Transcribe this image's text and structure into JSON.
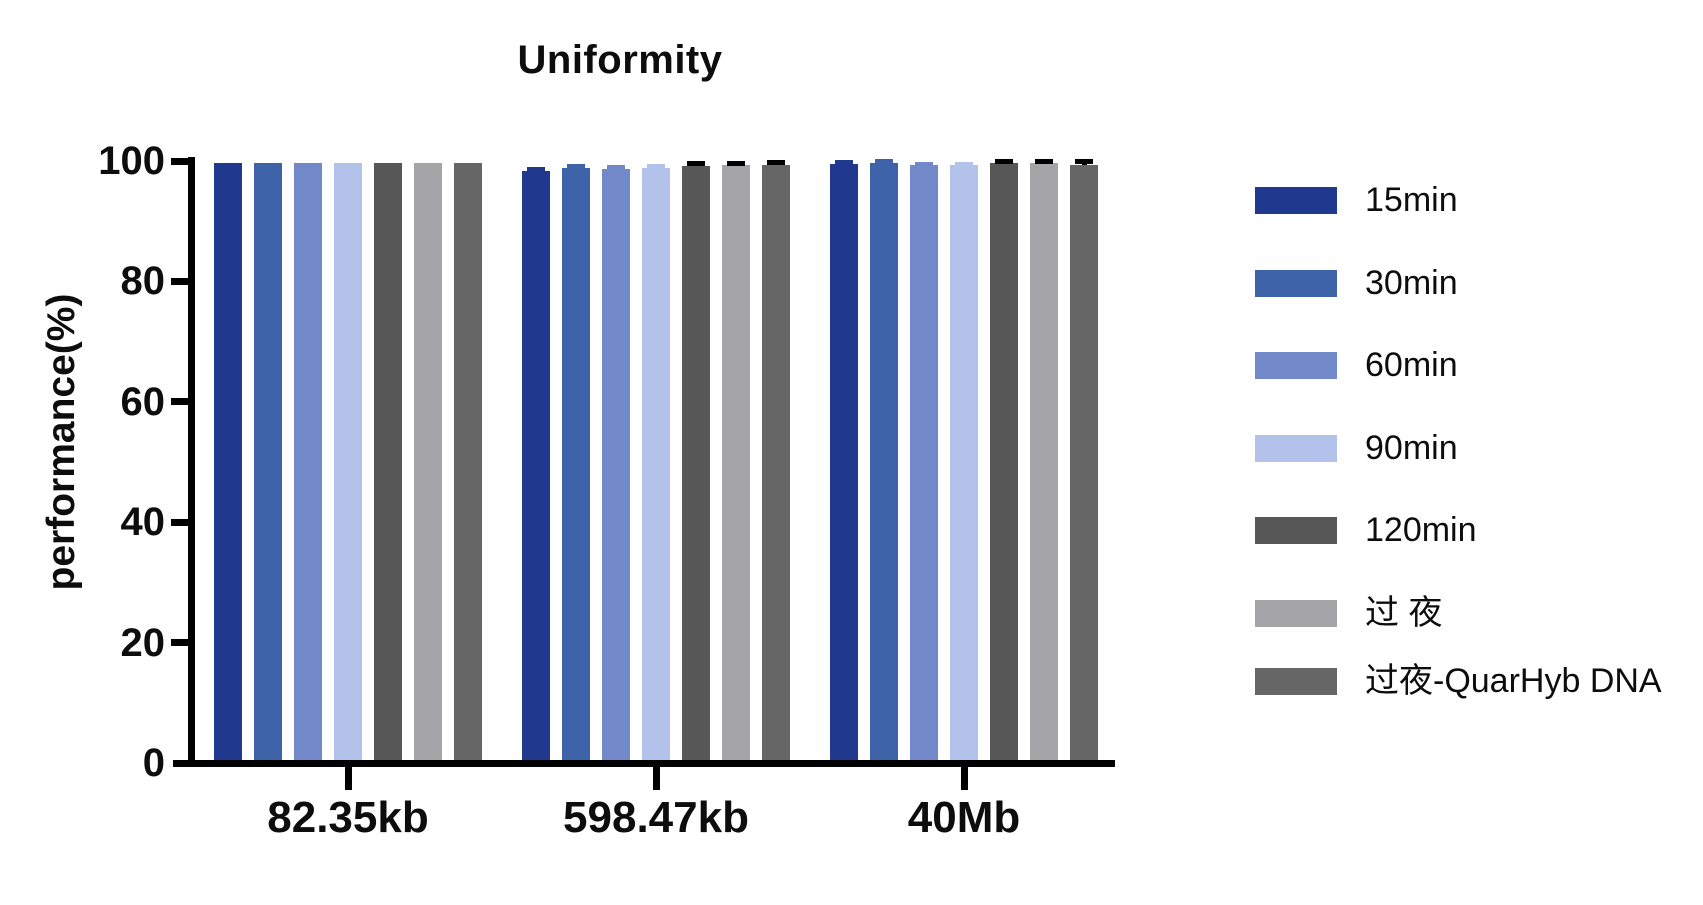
{
  "chart_data": {
    "type": "bar",
    "title": "Uniformity",
    "xlabel": "",
    "ylabel": "performance(%)",
    "ylim": [
      0,
      100
    ],
    "yticks": [
      0,
      20,
      40,
      60,
      80,
      100
    ],
    "grid": false,
    "legend_position": "right",
    "axis_color": "#000000",
    "text_color": "#0d0d0d",
    "categories": [
      "82.35kb",
      "598.47kb",
      "40Mb"
    ],
    "series": [
      {
        "name": "15min",
        "color": "#21388F",
        "error_color": "#21388F",
        "values": [
          99.6,
          98.4,
          99.5
        ],
        "errors": [
          0,
          0.3,
          0.3
        ]
      },
      {
        "name": "30min",
        "color": "#3F63A8",
        "error_color": "#3F63A8",
        "values": [
          99.7,
          98.8,
          99.7
        ],
        "errors": [
          0,
          0.3,
          0.25
        ]
      },
      {
        "name": "60min",
        "color": "#7189C8",
        "error_color": "#7189C8",
        "values": [
          99.7,
          98.7,
          99.4
        ],
        "errors": [
          0,
          0.3,
          0.1
        ]
      },
      {
        "name": "90min",
        "color": "#B3C2EB",
        "error_color": "#B3C2EB",
        "values": [
          99.7,
          98.9,
          99.4
        ],
        "errors": [
          0,
          0.2,
          0.1
        ]
      },
      {
        "name": "120min",
        "color": "#575757",
        "error_color": "#000000",
        "values": [
          99.7,
          99.2,
          99.6
        ],
        "errors": [
          0,
          0.5,
          0.4
        ]
      },
      {
        "name": "过 夜",
        "color": "#A5A5A8",
        "error_color": "#000000",
        "values": [
          99.7,
          99.3,
          99.7
        ],
        "errors": [
          0,
          0.45,
          0.3
        ]
      },
      {
        "name": "过夜-QuarHyb DNA",
        "color": "#666666",
        "error_color": "#000000",
        "values": [
          99.7,
          99.4,
          99.3
        ],
        "errors": [
          0,
          0.4,
          0.7
        ]
      }
    ]
  }
}
